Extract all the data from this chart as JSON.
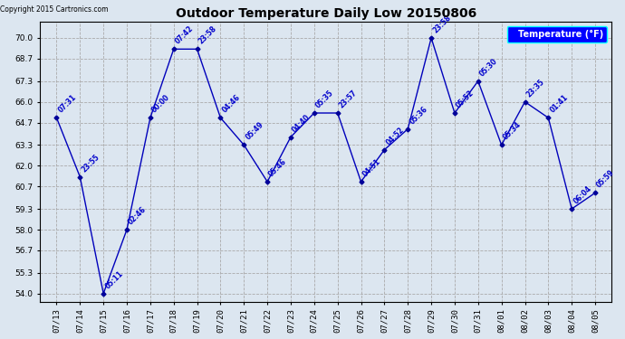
{
  "title": "Outdoor Temperature Daily Low 20150806",
  "copyright": "Copyright 2015 Cartronics.com",
  "legend_label": "Temperature (°F)",
  "dates": [
    "07/13",
    "07/14",
    "07/15",
    "07/16",
    "07/17",
    "07/18",
    "07/19",
    "07/20",
    "07/21",
    "07/22",
    "07/23",
    "07/24",
    "07/25",
    "07/26",
    "07/27",
    "07/28",
    "07/29",
    "07/30",
    "07/31",
    "08/01",
    "08/02",
    "08/03",
    "08/04",
    "08/05"
  ],
  "values": [
    65.0,
    61.3,
    54.0,
    58.0,
    65.0,
    69.3,
    69.3,
    65.0,
    63.3,
    61.0,
    63.8,
    65.3,
    65.3,
    61.0,
    63.0,
    64.3,
    70.0,
    65.3,
    67.3,
    63.3,
    66.0,
    65.0,
    59.3,
    60.3
  ],
  "times": [
    "07:31",
    "23:55",
    "05:11",
    "02:46",
    "00:00",
    "07:42",
    "23:58",
    "04:46",
    "05:49",
    "05:46",
    "04:40",
    "05:35",
    "23:57",
    "04:51",
    "04:52",
    "05:36",
    "23:58",
    "05:52",
    "05:30",
    "05:34",
    "23:35",
    "01:41",
    "06:04",
    "05:59"
  ],
  "line_color": "#0000bb",
  "marker_color": "#000099",
  "bg_color": "#dce6f0",
  "plot_bg_color": "#dce6f0",
  "grid_color": "#aaaaaa",
  "title_color": "#000000",
  "label_color": "#0000cc",
  "ylim_min": 54.0,
  "ylim_max": 70.0,
  "yticks": [
    54.0,
    55.3,
    56.7,
    58.0,
    59.3,
    60.7,
    62.0,
    63.3,
    64.7,
    66.0,
    67.3,
    68.7,
    70.0
  ]
}
